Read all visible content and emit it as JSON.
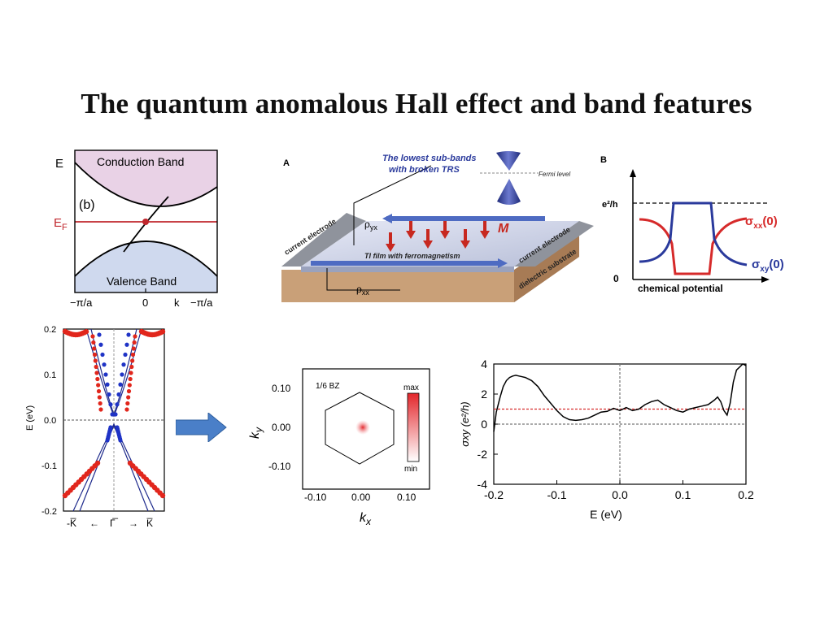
{
  "title": "The quantum anomalous Hall effect and band features",
  "panel_b": {
    "e_label": "E",
    "ef_label": "E",
    "ef_sub": "F",
    "tag": "(b)",
    "conduction": "Conduction Band",
    "valence": "Valence Band",
    "ticks": [
      "−π/a",
      "0",
      "k",
      "−π/a"
    ]
  },
  "panel_A": {
    "letter": "A",
    "caption_line1": "The lowest sub-bands",
    "caption_line2": "with broken TRS",
    "fermi": "Fermi level",
    "rho_yx": "ρ",
    "rho_yx_sub": "yx",
    "rho_xx": "ρ",
    "rho_xx_sub": "xx",
    "film": "TI film with ferromagnetism",
    "M": "M",
    "current_left": "current electrode",
    "current_right": "current electrode",
    "substrate": "dielectric substrate"
  },
  "panel_B": {
    "letter": "B",
    "y_top": "e²/h",
    "y_zero": "0",
    "xlabel": "chemical potential",
    "sxx": "σ",
    "sxx_sub": "xx",
    "sxx_tail": "(0)",
    "sxy": "σ",
    "sxy_sub": "xy",
    "sxy_tail": "(0)",
    "colors": {
      "sxx": "#d62a2a",
      "sxy": "#2a3a9c"
    }
  },
  "band_plot": {
    "ylabel": "E (eV)",
    "yticks": [
      "0.2",
      "0.1",
      "0.0",
      "-0.1",
      "-0.2"
    ],
    "xticks": [
      "-K̅",
      "←",
      "Γ̅",
      "→",
      "K̅"
    ]
  },
  "bz_plot": {
    "inset": "1/6 BZ",
    "max": "max",
    "min": "min",
    "xticks": [
      "-0.10",
      "0.00",
      "0.10"
    ],
    "yticks": [
      "0.10",
      "0.00",
      "-0.10"
    ],
    "xlabel": "k",
    "xlabel_sub": "x",
    "ylabel": "k",
    "ylabel_sub": "y"
  },
  "chart_data": [
    {
      "type": "line",
      "xlabel": "E (eV)",
      "ylabel": "σxy (e²/h)",
      "xlim": [
        -0.2,
        0.2
      ],
      "ylim": [
        -4,
        4
      ],
      "xticks": [
        "-0.2",
        "-0.1",
        "0.0",
        "0.1",
        "0.2"
      ],
      "yticks": [
        "4",
        "2",
        "0",
        "-2",
        "-4"
      ],
      "reference_lines": [
        {
          "y": 1,
          "color": "#d62a2a",
          "style": "dashed"
        },
        {
          "y": 0,
          "color": "#777777",
          "style": "dashed"
        },
        {
          "x": 0,
          "color": "#777777",
          "style": "dashed"
        }
      ],
      "series": [
        {
          "color": "#000000",
          "x": [
            -0.2,
            -0.196,
            -0.19,
            -0.185,
            -0.18,
            -0.175,
            -0.17,
            -0.165,
            -0.16,
            -0.155,
            -0.15,
            -0.14,
            -0.13,
            -0.12,
            -0.11,
            -0.1,
            -0.09,
            -0.08,
            -0.07,
            -0.06,
            -0.05,
            -0.04,
            -0.03,
            -0.02,
            -0.01,
            0.0,
            0.01,
            0.02,
            0.03,
            0.04,
            0.05,
            0.06,
            0.07,
            0.08,
            0.09,
            0.1,
            0.11,
            0.12,
            0.13,
            0.14,
            0.15,
            0.155,
            0.16,
            0.165,
            0.17,
            0.175,
            0.18,
            0.185,
            0.19,
            0.195,
            0.2
          ],
          "y": [
            -0.5,
            0.8,
            1.8,
            2.5,
            2.9,
            3.1,
            3.2,
            3.25,
            3.2,
            3.15,
            3.1,
            2.9,
            2.5,
            1.9,
            1.4,
            0.9,
            0.5,
            0.3,
            0.25,
            0.3,
            0.4,
            0.6,
            0.8,
            0.85,
            1.05,
            0.9,
            1.1,
            0.9,
            1.0,
            1.3,
            1.5,
            1.6,
            1.3,
            1.1,
            0.9,
            0.8,
            1.0,
            1.1,
            1.2,
            1.3,
            1.6,
            1.8,
            1.5,
            0.9,
            0.6,
            1.4,
            2.8,
            3.6,
            3.8,
            4.0,
            3.9
          ]
        }
      ]
    }
  ]
}
